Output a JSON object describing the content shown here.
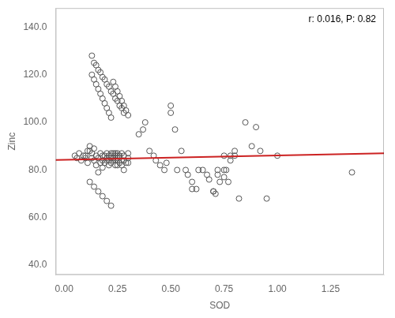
{
  "chart_data": {
    "type": "scatter",
    "xlabel": "SOD",
    "ylabel": "Zinc",
    "annotations": [
      {
        "text": "r: 0.016, P: 0.82"
      }
    ],
    "series": [
      {
        "type": "scatter",
        "marker": "open_circle",
        "color": "#555555",
        "x": [
          0.05,
          0.06,
          0.07,
          0.08,
          0.09,
          0.1,
          0.1,
          0.11,
          0.11,
          0.12,
          0.12,
          0.13,
          0.13,
          0.14,
          0.14,
          0.15,
          0.15,
          0.16,
          0.16,
          0.17,
          0.17,
          0.18,
          0.18,
          0.18,
          0.19,
          0.19,
          0.2,
          0.2,
          0.2,
          0.21,
          0.21,
          0.21,
          0.22,
          0.22,
          0.22,
          0.22,
          0.23,
          0.23,
          0.23,
          0.24,
          0.24,
          0.24,
          0.24,
          0.25,
          0.25,
          0.25,
          0.25,
          0.25,
          0.26,
          0.26,
          0.27,
          0.27,
          0.27,
          0.28,
          0.28,
          0.28,
          0.29,
          0.3,
          0.3,
          0.3,
          0.13,
          0.14,
          0.15,
          0.16,
          0.17,
          0.18,
          0.19,
          0.2,
          0.21,
          0.22,
          0.23,
          0.24,
          0.25,
          0.26,
          0.27,
          0.28,
          0.29,
          0.3,
          0.14,
          0.16,
          0.18,
          0.2,
          0.22,
          0.24,
          0.26,
          0.28,
          0.13,
          0.15,
          0.17,
          0.19,
          0.21,
          0.23,
          0.25,
          0.27,
          0.12,
          0.14,
          0.16,
          0.18,
          0.2,
          0.22,
          0.35,
          0.37,
          0.38,
          0.4,
          0.42,
          0.43,
          0.45,
          0.47,
          0.48,
          0.5,
          0.5,
          0.52,
          0.53,
          0.55,
          0.57,
          0.58,
          0.6,
          0.6,
          0.62,
          0.63,
          0.65,
          0.67,
          0.68,
          0.7,
          0.7,
          0.71,
          0.72,
          0.72,
          0.73,
          0.75,
          0.75,
          0.75,
          0.76,
          0.77,
          0.78,
          0.78,
          0.8,
          0.8,
          0.82,
          0.85,
          0.88,
          0.9,
          0.92,
          0.95,
          1.0,
          1.35
        ],
        "values": [
          86.0,
          85.0,
          87.0,
          84.0,
          86.0,
          86.0,
          85.0,
          88.0,
          83.0,
          90.0,
          88.0,
          87.0,
          85.0,
          89.0,
          84.0,
          82.0,
          86.0,
          79.0,
          85.0,
          83.0,
          87.0,
          86.0,
          84.0,
          81.0,
          83.0,
          86.0,
          84.0,
          87.0,
          85.0,
          86.0,
          84.0,
          82.0,
          87.0,
          85.0,
          83.0,
          86.0,
          84.0,
          87.0,
          85.0,
          86.0,
          84.0,
          82.0,
          87.0,
          86.0,
          84.0,
          87.0,
          82.0,
          85.0,
          83.0,
          86.0,
          84.0,
          87.0,
          82.0,
          86.0,
          84.0,
          80.0,
          83.0,
          87.0,
          85.0,
          83.0,
          120.0,
          118.0,
          116.0,
          114.0,
          112.0,
          110.0,
          108.0,
          106.0,
          104.0,
          102.0,
          117.0,
          115.0,
          113.0,
          111.0,
          109.0,
          107.0,
          105.0,
          103.0,
          125.0,
          122.0,
          119.0,
          116.0,
          113.0,
          110.0,
          107.0,
          104.0,
          128.0,
          124.0,
          121.0,
          118.0,
          115.0,
          112.0,
          109.0,
          106.0,
          75.0,
          73.0,
          71.0,
          69.0,
          67.0,
          65.0,
          95.0,
          97.0,
          100.0,
          88.0,
          86.0,
          84.0,
          82.0,
          80.0,
          83.0,
          107.0,
          104.0,
          97.0,
          80.0,
          88.0,
          80.0,
          78.0,
          75.0,
          72.0,
          72.0,
          80.0,
          80.0,
          78.0,
          76.0,
          71.0,
          71.0,
          70.0,
          80.0,
          78.0,
          75.0,
          86.0,
          80.0,
          77.0,
          80.0,
          75.0,
          86.0,
          84.0,
          88.0,
          86.0,
          68.0,
          100.0,
          90.0,
          98.0,
          88.0,
          68.0,
          86.0,
          79.0
        ]
      },
      {
        "type": "line",
        "line_style": "solid",
        "color": "#cc2222",
        "x": [
          -0.04,
          1.5
        ],
        "values": [
          84.228,
          87.0
        ]
      }
    ],
    "xlim": [
      -0.04,
      1.5
    ],
    "ylim": [
      36.0,
      148.0
    ],
    "xticks": [
      {
        "value": 0.0,
        "label": "0.00"
      },
      0.25,
      {
        "value": 0.5,
        "label": "0.50"
      },
      0.75,
      {
        "value": 1.0,
        "label": "1.00"
      },
      1.25
    ],
    "yticks": [
      {
        "value": 40.0,
        "label": "40.0"
      },
      {
        "value": 60.0,
        "label": "60.0"
      },
      {
        "value": 80.0,
        "label": "80.0"
      },
      {
        "value": 100.0,
        "label": "100.0"
      },
      {
        "value": 120.0,
        "label": "120.0"
      },
      {
        "value": 140.0,
        "label": "140.0"
      }
    ],
    "grid": false
  }
}
